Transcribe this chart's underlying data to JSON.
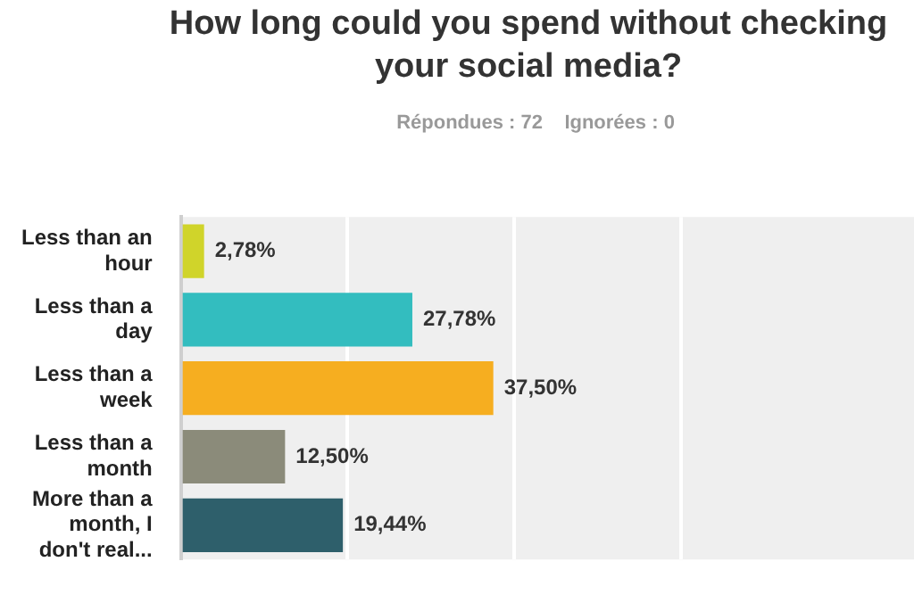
{
  "chart_data": {
    "type": "bar",
    "orientation": "horizontal",
    "title": "How long could you spend without checking your social media?",
    "subtitle": "Répondues : 72    Ignorées : 0",
    "categories": [
      "Less than an hour",
      "Less than a day",
      "Less than a week",
      "Less than a month",
      "More than a month, I don't real..."
    ],
    "values": [
      2.78,
      27.78,
      37.5,
      12.5,
      19.44
    ],
    "colors": [
      "#d0d42a",
      "#33bdbf",
      "#f6ae20",
      "#8b8b7a",
      "#2e5f6b"
    ],
    "value_labels": [
      "2,78%",
      "27,78%",
      "37,50%",
      "12,50%",
      "19,44%"
    ],
    "xlim": [
      0,
      88
    ],
    "xticks": [
      {
        "value": 0,
        "label": null
      },
      {
        "value": 20,
        "label": null
      },
      {
        "value": 40,
        "label": null
      },
      {
        "value": 60,
        "label": null
      }
    ],
    "grid": "x",
    "tick_labels": "y",
    "legend": false
  }
}
